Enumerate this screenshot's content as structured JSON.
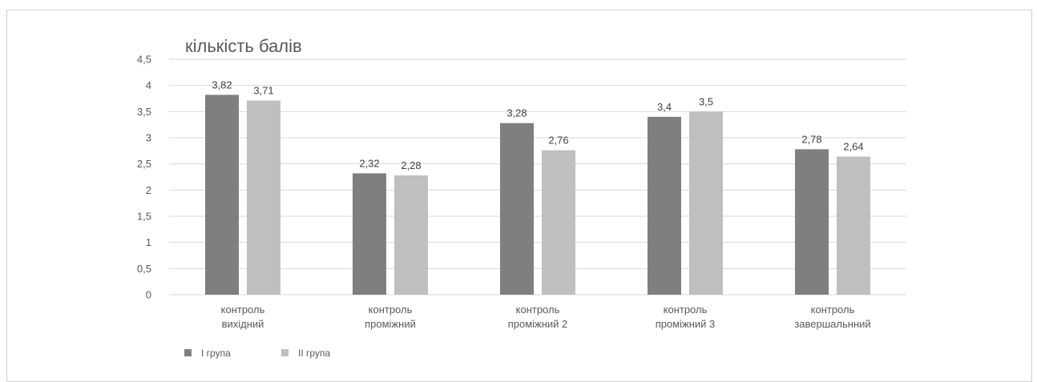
{
  "chart_data": {
    "type": "bar",
    "ylabel": "кількість балів",
    "ylim": [
      0,
      4.5
    ],
    "ytick_step": 0.5,
    "yticks": [
      "0",
      "0,5",
      "1",
      "1,5",
      "2",
      "2,5",
      "3",
      "3,5",
      "4",
      "4,5"
    ],
    "grid": true,
    "legend_position": "bottom-left",
    "categories": [
      [
        "контроль",
        "вихідний"
      ],
      [
        "контроль",
        "проміжний"
      ],
      [
        "контроль",
        "проміжний 2"
      ],
      [
        "контроль",
        "проміжний 3"
      ],
      [
        "контроль",
        "завершальнний"
      ]
    ],
    "series": [
      {
        "name": "I група",
        "color": "#7f7f7f",
        "values": [
          3.82,
          2.32,
          3.28,
          3.4,
          2.78
        ],
        "labels": [
          "3,82",
          "2,32",
          "3,28",
          "3,4",
          "2,78"
        ]
      },
      {
        "name": "II група",
        "color": "#bfbfbf",
        "values": [
          3.71,
          2.28,
          2.76,
          3.5,
          2.64
        ],
        "labels": [
          "3,71",
          "2,28",
          "2,76",
          "3,5",
          "2,64"
        ]
      }
    ]
  }
}
